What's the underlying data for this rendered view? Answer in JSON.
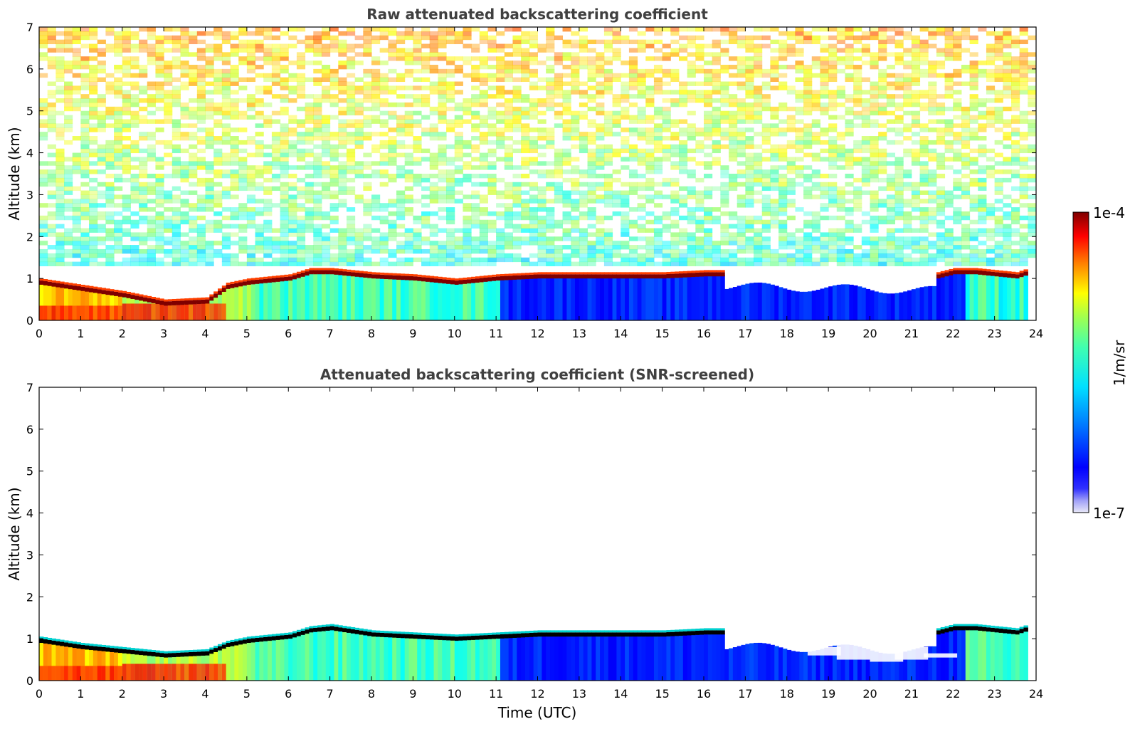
{
  "chart_data": [
    {
      "type": "heatmap",
      "title": "Raw attenuated backscattering coefficient",
      "xlabel": "",
      "ylabel": "Altitude (km)",
      "xlim": [
        0,
        24
      ],
      "ylim": [
        0,
        7
      ],
      "x_ticks": [
        0,
        1,
        2,
        3,
        4,
        5,
        6,
        7,
        8,
        9,
        10,
        11,
        12,
        13,
        14,
        15,
        16,
        17,
        18,
        19,
        20,
        21,
        22,
        23,
        24
      ],
      "y_ticks": [
        0,
        1,
        2,
        3,
        4,
        5,
        6,
        7
      ],
      "screened": false,
      "layer_top_km": {
        "time": [
          0,
          1,
          2,
          3,
          4,
          4.5,
          5,
          5.5,
          6,
          6.5,
          7,
          8,
          9,
          10,
          11,
          12,
          13,
          14,
          15,
          16,
          16.4
        ],
        "value": [
          0.95,
          0.8,
          0.65,
          0.45,
          0.5,
          0.85,
          0.95,
          1.0,
          1.05,
          1.2,
          1.2,
          1.1,
          1.05,
          0.95,
          1.05,
          1.1,
          1.1,
          1.1,
          1.1,
          1.15,
          1.15
        ]
      },
      "layer2_top_km": {
        "time": [
          21.6,
          22,
          22.5,
          23,
          23.5,
          23.8
        ],
        "value": [
          1.1,
          1.2,
          1.2,
          1.15,
          1.1,
          1.2
        ]
      },
      "colorbar": {
        "min_label": "1e-7",
        "max_label": "1e-4",
        "label": "1/m/sr",
        "scale": "log"
      }
    },
    {
      "type": "heatmap",
      "title": "Attenuated backscattering coefficient (SNR-screened)",
      "xlabel": "Time (UTC)",
      "ylabel": "Altitude (km)",
      "xlim": [
        0,
        24
      ],
      "ylim": [
        0,
        7
      ],
      "x_ticks": [
        0,
        1,
        2,
        3,
        4,
        5,
        6,
        7,
        8,
        9,
        10,
        11,
        12,
        13,
        14,
        15,
        16,
        17,
        18,
        19,
        20,
        21,
        22,
        23,
        24
      ],
      "y_ticks": [
        0,
        1,
        2,
        3,
        4,
        5,
        6,
        7
      ],
      "screened": true,
      "layer_top_km": {
        "time": [
          0,
          1,
          2,
          3,
          4,
          4.5,
          5,
          5.5,
          6,
          6.5,
          7,
          8,
          9,
          10,
          11,
          12,
          13,
          14,
          15,
          16,
          16.4
        ],
        "value": [
          1.0,
          0.85,
          0.75,
          0.65,
          0.7,
          0.9,
          1.0,
          1.05,
          1.1,
          1.25,
          1.3,
          1.15,
          1.1,
          1.05,
          1.1,
          1.15,
          1.15,
          1.15,
          1.15,
          1.2,
          1.2
        ]
      },
      "layer2_top_km": {
        "time": [
          21.6,
          22,
          22.5,
          23,
          23.5,
          23.8
        ],
        "value": [
          1.2,
          1.3,
          1.3,
          1.25,
          1.2,
          1.3
        ]
      },
      "colorbar": {
        "min_label": "1e-7",
        "max_label": "1e-4",
        "label": "1/m/sr",
        "scale": "log"
      }
    }
  ],
  "colors": {
    "title_gray": "#404040",
    "jet_dark_red": "#7f0000",
    "jet_blue": "#0000ff",
    "jet_cyan": "#00ffff",
    "jet_yellow": "#ffff00"
  }
}
